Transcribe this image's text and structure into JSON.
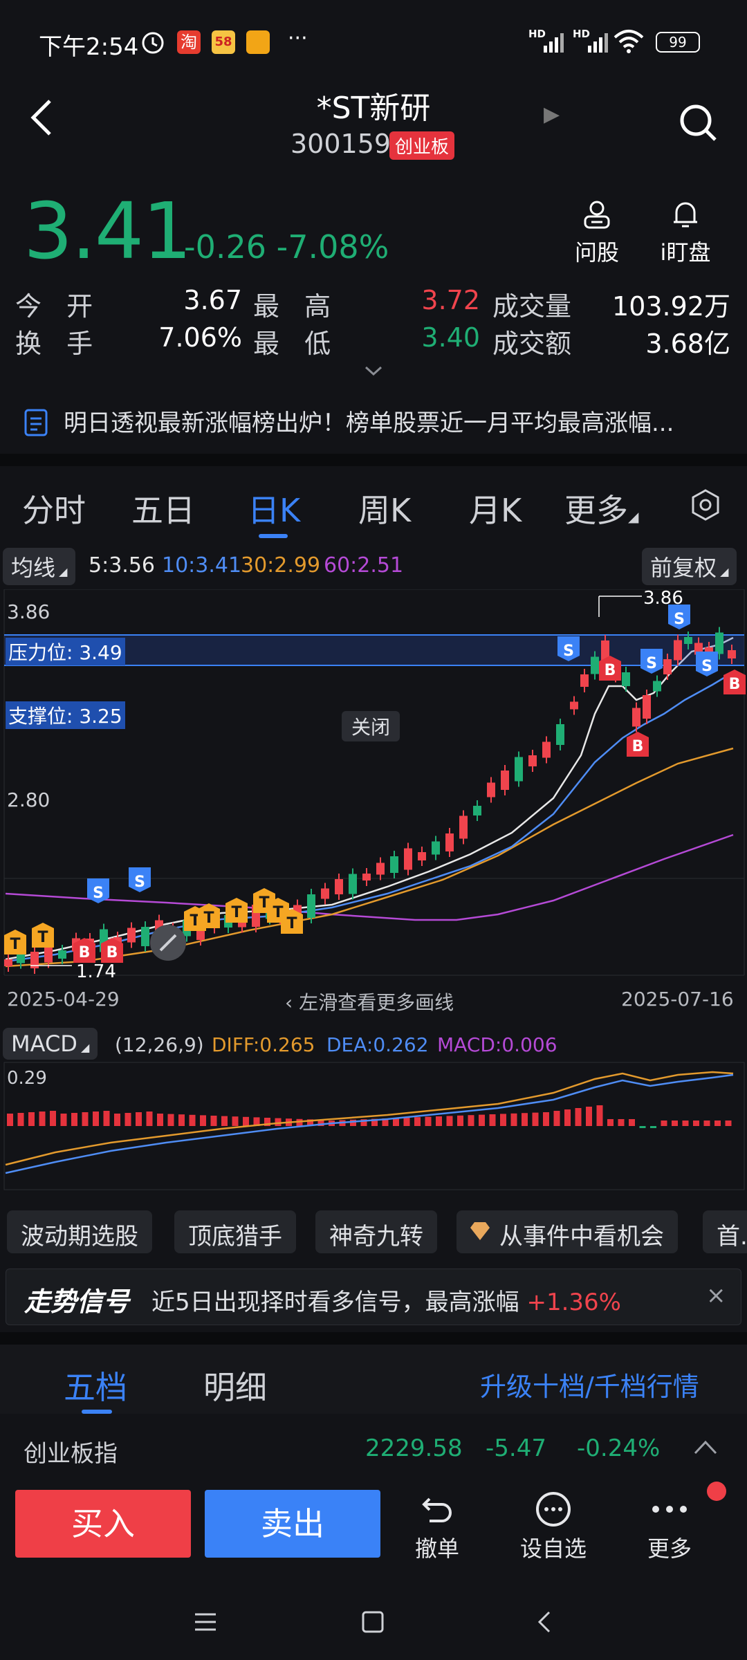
{
  "status_bar": {
    "time": "下午2:54",
    "battery": "99",
    "more": "···",
    "net1": "HD",
    "net2": "HD"
  },
  "header": {
    "title": "*ST新研",
    "code": "300159",
    "board": "创业板"
  },
  "price": {
    "last": "3.41",
    "change": "-0.26",
    "change_pct": "-7.08%"
  },
  "top_actions": [
    {
      "label": "问股",
      "icon": "person-icon"
    },
    {
      "label": "i盯盘",
      "icon": "bell-icon"
    }
  ],
  "stats": {
    "open_label": "今 开",
    "open": "3.67",
    "high_label": "最 高",
    "high": "3.72",
    "volume_label": "成交量",
    "volume": "103.92万",
    "turnover_label": "换 手",
    "turnover": "7.06%",
    "low_label": "最 低",
    "low": "3.40",
    "amount_label": "成交额",
    "amount": "3.68亿"
  },
  "news": {
    "text": "明日透视最新涨幅榜出炉！榜单股票近一月平均最高涨幅..."
  },
  "period_tabs": [
    "分时",
    "五日",
    "日K",
    "周K",
    "月K",
    "更多"
  ],
  "active_tab": "日K",
  "ma": {
    "selector": "均线",
    "ma5": "5:3.56",
    "ma10": "10:3.41",
    "ma30": "30:2.99",
    "ma60": "60:2.51",
    "adjust": "前复权"
  },
  "colors": {
    "up": "#f0444d",
    "down": "#1fae74",
    "accent": "#3b82f6",
    "ma5": "#e8e8e8",
    "ma10": "#4f8df5",
    "ma30": "#e39a2d",
    "ma60": "#b54ad6"
  },
  "kchart": {
    "y_top_label": "3.86",
    "y_mid_label": "2.80",
    "pressure": "压力位: 3.49",
    "support": "支撑位: 3.25",
    "close_label": "关闭",
    "max_label": "3.86",
    "min_label": "1.74",
    "start_date": "2025-04-29",
    "end_date": "2025-07-16",
    "hint": "左滑查看更多画线"
  },
  "macd": {
    "name": "MACD",
    "params": "(12,26,9)",
    "diff": "DIFF:0.265",
    "dea": "DEA:0.262",
    "macd": "MACD:0.006",
    "axis_top": "0.29"
  },
  "chips": [
    "波动期选股",
    "顶底猎手",
    "神奇九转",
    "从事件中看机会",
    "首..."
  ],
  "signal": {
    "brand": "走势信号",
    "text": "近5日出现择时看多信号，最高涨幅",
    "gain": "+1.36%"
  },
  "orderbook": {
    "tab1": "五档",
    "tab2": "明细",
    "upgrade": "升级十档/千档行情"
  },
  "index": {
    "name": "创业板指",
    "value": "2229.58",
    "change": "-5.47",
    "pct": "-0.24%"
  },
  "trade": {
    "buy": "买入",
    "sell": "卖出",
    "cancel": "撤单",
    "watch": "设自选",
    "more": "更多"
  }
}
